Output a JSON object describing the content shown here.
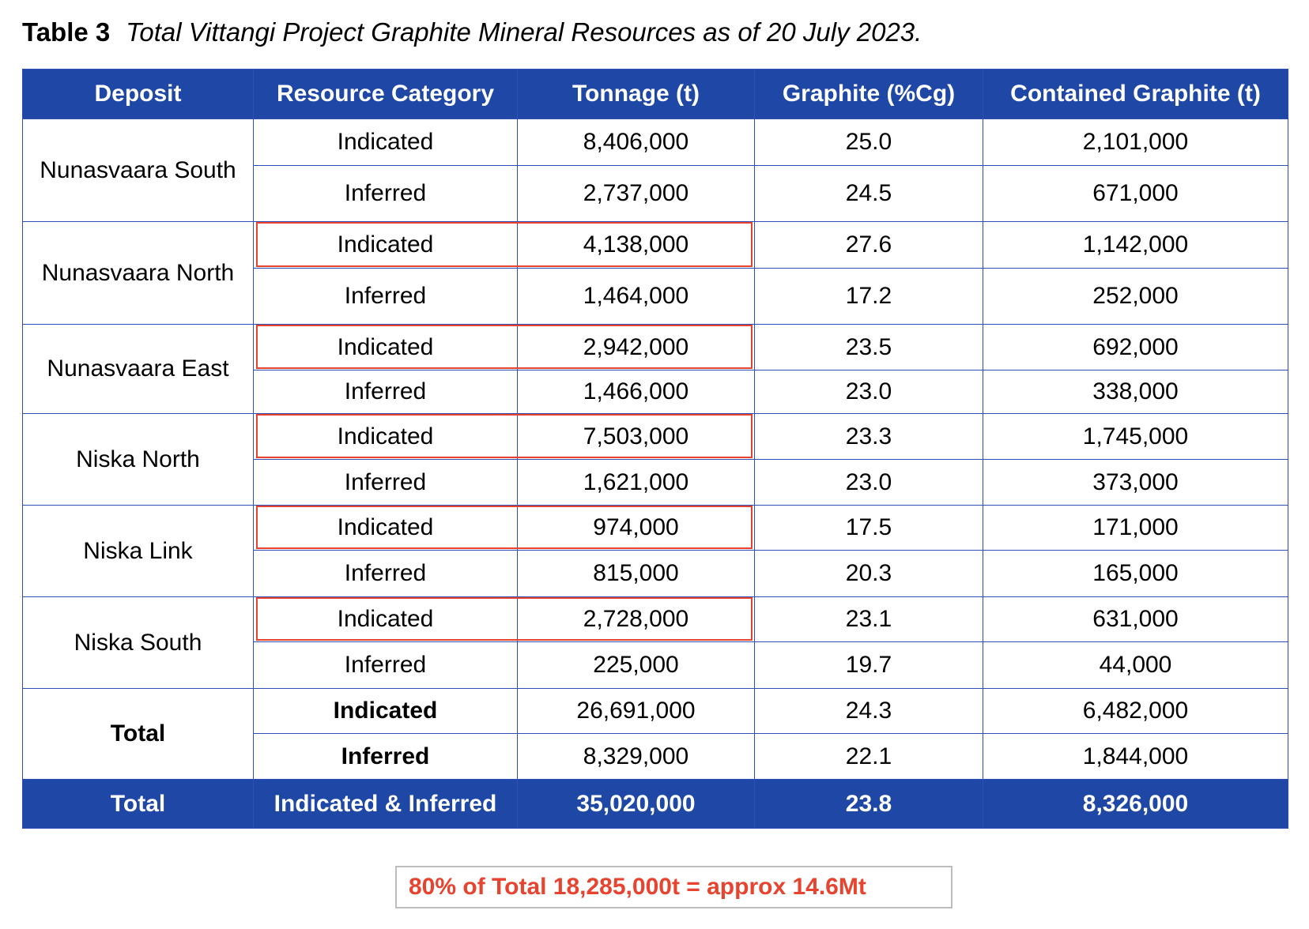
{
  "title": {
    "label": "Table 3",
    "text": "Total Vittangi Project Graphite Mineral Resources as of 20 July 2023."
  },
  "colors": {
    "header_bg": "#1f47a6",
    "border": "#2d4fb5",
    "highlight": "#e8432e"
  },
  "columns": [
    "Deposit",
    "Resource Category",
    "Tonnage (t)",
    "Graphite (%Cg)",
    "Contained Graphite (t)"
  ],
  "deposits": [
    {
      "name": "Nunasvaara South",
      "rows": [
        {
          "category": "Indicated",
          "tonnage": "8,406,000",
          "grade": "25.0",
          "contained": "2,101,000",
          "highlighted": false
        },
        {
          "category": "Inferred",
          "tonnage": "2,737,000",
          "grade": "24.5",
          "contained": "671,000",
          "highlighted": false
        }
      ]
    },
    {
      "name": "Nunasvaara North",
      "rows": [
        {
          "category": "Indicated",
          "tonnage": "4,138,000",
          "grade": "27.6",
          "contained": "1,142,000",
          "highlighted": true
        },
        {
          "category": "Inferred",
          "tonnage": "1,464,000",
          "grade": "17.2",
          "contained": "252,000",
          "highlighted": false
        }
      ]
    },
    {
      "name": "Nunasvaara East",
      "rows": [
        {
          "category": "Indicated",
          "tonnage": "2,942,000",
          "grade": "23.5",
          "contained": "692,000",
          "highlighted": true
        },
        {
          "category": "Inferred",
          "tonnage": "1,466,000",
          "grade": "23.0",
          "contained": "338,000",
          "highlighted": false
        }
      ]
    },
    {
      "name": "Niska North",
      "rows": [
        {
          "category": "Indicated",
          "tonnage": "7,503,000",
          "grade": "23.3",
          "contained": "1,745,000",
          "highlighted": true
        },
        {
          "category": "Inferred",
          "tonnage": "1,621,000",
          "grade": "23.0",
          "contained": "373,000",
          "highlighted": false
        }
      ]
    },
    {
      "name": "Niska Link",
      "rows": [
        {
          "category": "Indicated",
          "tonnage": "974,000",
          "grade": "17.5",
          "contained": "171,000",
          "highlighted": true
        },
        {
          "category": "Inferred",
          "tonnage": "815,000",
          "grade": "20.3",
          "contained": "165,000",
          "highlighted": false
        }
      ]
    },
    {
      "name": "Niska South",
      "rows": [
        {
          "category": "Indicated",
          "tonnage": "2,728,000",
          "grade": "23.1",
          "contained": "631,000",
          "highlighted": true
        },
        {
          "category": "Inferred",
          "tonnage": "225,000",
          "grade": "19.7",
          "contained": "44,000",
          "highlighted": false
        }
      ]
    },
    {
      "name": "Total",
      "bold": true,
      "rows": [
        {
          "category": "Indicated",
          "tonnage": "26,691,000",
          "grade": "24.3",
          "contained": "6,482,000",
          "highlighted": false
        },
        {
          "category": "Inferred",
          "tonnage": "8,329,000",
          "grade": "22.1",
          "contained": "1,844,000",
          "highlighted": false
        }
      ]
    }
  ],
  "grand_total": {
    "deposit": "Total",
    "category": "Indicated & Inferred",
    "tonnage": "35,020,000",
    "grade": "23.8",
    "contained": "8,326,000"
  },
  "note": "80% of Total 18,285,000t = approx 14.6Mt"
}
